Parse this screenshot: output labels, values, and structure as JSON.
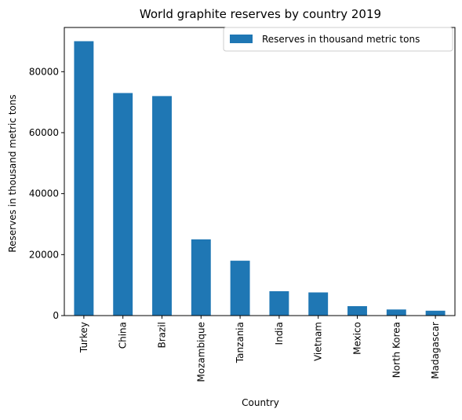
{
  "chart_data": {
    "type": "bar",
    "title": "World graphite reserves by country 2019",
    "xlabel": "Country",
    "ylabel": "Reserves in thousand metric tons",
    "categories": [
      "Turkey",
      "China",
      "Brazil",
      "Mozambique",
      "Tanzania",
      "India",
      "Vietnam",
      "Mexico",
      "North Korea",
      "Madagascar"
    ],
    "series": [
      {
        "name": "Reserves in thousand metric tons",
        "values": [
          90000,
          73000,
          72000,
          25000,
          18000,
          8000,
          7600,
          3100,
          2000,
          1600
        ],
        "color": "#1f77b4"
      }
    ],
    "yticks": [
      0,
      20000,
      40000,
      60000,
      80000
    ],
    "ylim": [
      0,
      94500
    ],
    "grid": false,
    "legend_position": "top-right"
  }
}
